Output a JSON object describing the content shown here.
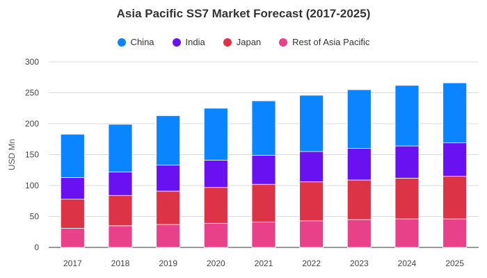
{
  "chart_data": {
    "type": "bar",
    "stacked": true,
    "title": "Asia Pacific SS7 Market Forecast (2017-2025)",
    "xlabel": "",
    "ylabel": "USD Mn",
    "ylim": [
      0,
      300
    ],
    "yticks": [
      0,
      50,
      100,
      150,
      200,
      250,
      300
    ],
    "grid": "horizontal",
    "legend_position": "top-center",
    "categories": [
      "2017",
      "2018",
      "2019",
      "2020",
      "2021",
      "2022",
      "2023",
      "2024",
      "2025"
    ],
    "series": [
      {
        "name": "Rest of Asia Pacific",
        "color": "#e8418a",
        "values": [
          31,
          35,
          37,
          39,
          41,
          43,
          45,
          46,
          46
        ]
      },
      {
        "name": "Japan",
        "color": "#dd3347",
        "values": [
          47,
          49,
          54,
          58,
          61,
          63,
          64,
          66,
          69
        ]
      },
      {
        "name": "India",
        "color": "#6a11f2",
        "values": [
          35,
          38,
          42,
          44,
          47,
          49,
          51,
          52,
          54
        ]
      },
      {
        "name": "China",
        "color": "#0a84ff",
        "values": [
          70,
          77,
          80,
          84,
          88,
          91,
          95,
          98,
          97
        ]
      }
    ],
    "legend_order": [
      "China",
      "India",
      "Japan",
      "Rest of Asia Pacific"
    ]
  }
}
